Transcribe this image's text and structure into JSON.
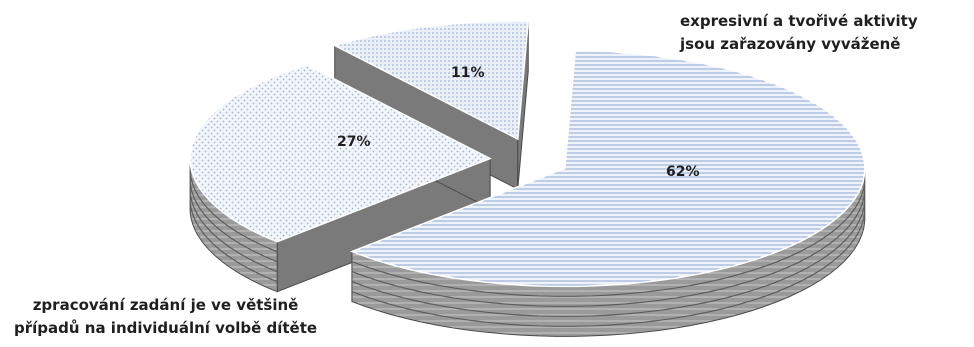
{
  "chart_data": {
    "type": "pie",
    "title": "",
    "slices": [
      {
        "label": "expresivní a tvořivé aktivity jsou zařazovány vyváženě",
        "value": 62,
        "value_label": "62%"
      },
      {
        "label": "zpracování zadání je ve většině případů na individuální volbě dítěte",
        "value": 27,
        "value_label": "27%"
      },
      {
        "label": "",
        "value": 11,
        "value_label": "11%"
      }
    ],
    "label_lines": {
      "slice0": [
        "expresivní a tvořivé aktivity",
        "jsou zařazovány vyváženě"
      ],
      "slice1": [
        "zpracování zadání je ve většině",
        "případů na individuální volbě dítěte"
      ]
    },
    "style": "3d-exploded",
    "legend": "none",
    "colors": {
      "face": "#dfe7f4",
      "face_line": "#7e9bc9",
      "side": "#8e8e8e",
      "edge": "#4a4a4a"
    }
  }
}
